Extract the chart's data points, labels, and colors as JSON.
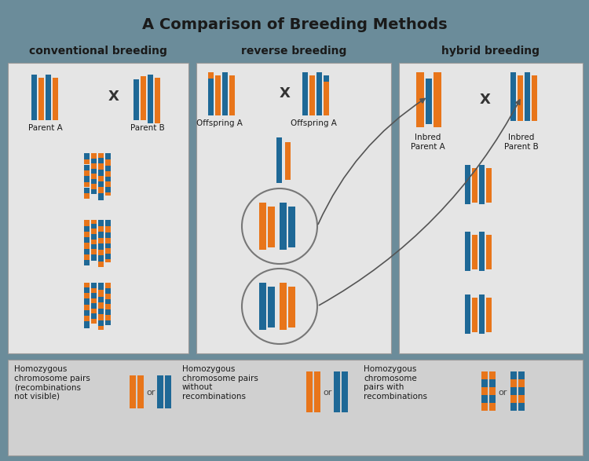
{
  "title": "A Comparison of Breeding Methods",
  "bg_outer": "#6b8c9a",
  "bg_panel": "#e5e5e5",
  "bg_legend": "#d0d0d0",
  "orange": "#e8751a",
  "blue": "#1e6896",
  "section_labels": [
    "conventional breeding",
    "reverse breeding",
    "hybrid breeding"
  ],
  "figw": 7.5,
  "figh": 5.87,
  "dpi": 100
}
